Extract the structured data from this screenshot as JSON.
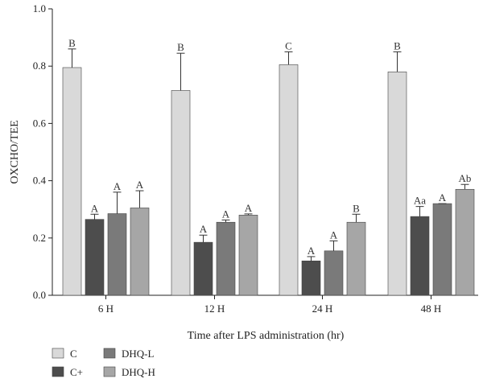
{
  "chart_data": {
    "type": "bar",
    "title": "",
    "xlabel": "Time after LPS administration (hr)",
    "ylabel": "OXCHO/TEE",
    "ylim": [
      0,
      1.0
    ],
    "yticks": [
      "0.0",
      "0.2",
      "0.4",
      "0.6",
      "0.8",
      "1.0"
    ],
    "categories": [
      "6 H",
      "12 H",
      "24 H",
      "48 H"
    ],
    "series": [
      {
        "name": "C",
        "color": "#d9d9d9",
        "values": [
          0.795,
          0.715,
          0.805,
          0.78
        ],
        "errors": [
          0.065,
          0.13,
          0.045,
          0.07
        ],
        "labels": [
          "B",
          "B",
          "C",
          "B"
        ]
      },
      {
        "name": "C+",
        "color": "#4d4d4d",
        "values": [
          0.265,
          0.185,
          0.12,
          0.275
        ],
        "errors": [
          0.018,
          0.025,
          0.015,
          0.035
        ],
        "labels": [
          "A",
          "A",
          "A",
          "Aa"
        ]
      },
      {
        "name": "DHQ-L",
        "color": "#7a7a7a",
        "values": [
          0.285,
          0.255,
          0.155,
          0.32
        ],
        "errors": [
          0.075,
          0.008,
          0.035,
          0.0
        ],
        "labels": [
          "A",
          "A",
          "A",
          "A"
        ]
      },
      {
        "name": "DHQ-H",
        "color": "#a6a6a6",
        "values": [
          0.305,
          0.28,
          0.255,
          0.37
        ],
        "errors": [
          0.06,
          0.004,
          0.028,
          0.017
        ],
        "labels": [
          "A",
          "A",
          "B",
          "Ab"
        ]
      }
    ],
    "legend": {
      "position": "bottom-left",
      "columns": 2
    }
  }
}
